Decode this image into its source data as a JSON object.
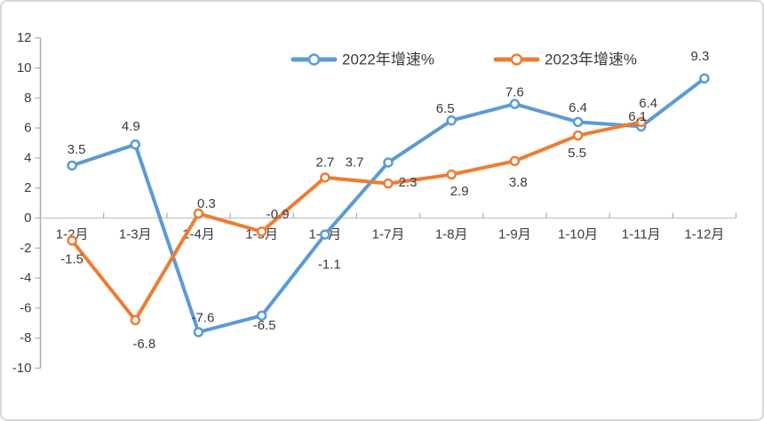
{
  "chart_data": {
    "type": "line",
    "title": "",
    "categories": [
      "1-2月",
      "1-3月",
      "1-4月",
      "1-5月",
      "1-6月",
      "1-7月",
      "1-8月",
      "1-9月",
      "1-10月",
      "1-11月",
      "1-12月"
    ],
    "series": [
      {
        "name": "2022年增速%",
        "color": "#5B9BD5",
        "values": [
          3.5,
          4.9,
          -7.6,
          -6.5,
          -1.1,
          3.7,
          6.5,
          7.6,
          6.4,
          6.1,
          9.3
        ],
        "labels": [
          "3.5",
          "4.9",
          "-7.6",
          "-6.5",
          "-1.1",
          "3.7",
          "6.5",
          "7.6",
          "6.4",
          "6.1",
          "9.3"
        ],
        "label_offsets": [
          [
            5,
            -18
          ],
          [
            -5,
            -20
          ],
          [
            5,
            -16
          ],
          [
            3,
            11
          ],
          [
            5,
            34
          ],
          [
            -38,
            0
          ],
          [
            -7,
            -13
          ],
          [
            0,
            -13
          ],
          [
            0,
            -16
          ],
          [
            -4,
            -11
          ],
          [
            -5,
            -25
          ]
        ]
      },
      {
        "name": "2023年增速%",
        "color": "#ED7D31",
        "values": [
          -1.5,
          -6.8,
          0.3,
          -0.9,
          2.7,
          2.3,
          2.9,
          3.8,
          5.5,
          6.4
        ],
        "labels": [
          "-1.5",
          "-6.8",
          "0.3",
          "-0.9",
          "2.7",
          "2.3",
          "2.9",
          "3.8",
          "5.5",
          "6.4"
        ],
        "label_offsets": [
          [
            0,
            21
          ],
          [
            10,
            27
          ],
          [
            9,
            -11
          ],
          [
            18,
            -19
          ],
          [
            0,
            -17
          ],
          [
            22,
            -1
          ],
          [
            9,
            19
          ],
          [
            4,
            24
          ],
          [
            -1,
            20
          ],
          [
            8,
            -21
          ]
        ]
      }
    ],
    "y_ticks": [
      "12",
      "10",
      "8",
      "6",
      "4",
      "2",
      "0",
      "-2",
      "-4",
      "-6",
      "-8",
      "-10"
    ],
    "y_tick_values": [
      12,
      10,
      8,
      6,
      4,
      2,
      0,
      -2,
      -4,
      -6,
      -8,
      -10
    ],
    "ylim": [
      -10,
      12
    ],
    "grid": "zero-line-only",
    "legend_position": "top-center",
    "text_color": "#3B3B3B",
    "axis_color": "#ABABAB",
    "zero_line_color": "#CCCCCC"
  }
}
